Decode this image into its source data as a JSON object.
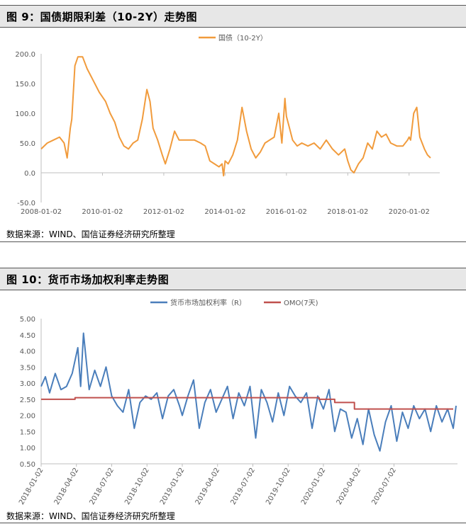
{
  "charts": [
    {
      "header": "图 9：国债期限利差（10-2Y）走势图",
      "source": "数据来源：WIND、国信证券经济研究所整理"
    },
    {
      "header": "图 10：货币市场加权利率走势图",
      "source": "数据来源：WIND、国信证券经济研究所整理"
    }
  ],
  "colors": {
    "orange": "#f19b3c",
    "blue": "#4a7ebb",
    "red": "#c0504d",
    "axis": "#bfbfbf",
    "text": "#595959"
  },
  "chart_data": [
    {
      "type": "line",
      "title": "",
      "legend": [
        "国债（10-2Y）"
      ],
      "legend_position": "top-center",
      "xlabel": "",
      "ylabel": "",
      "xlim": [
        2008.0,
        2021.0
      ],
      "ylim": [
        -50,
        200
      ],
      "y_ticks": [
        "-50.0",
        "0.0",
        "50.0",
        "100.0",
        "150.0",
        "200.0"
      ],
      "y_tick_values": [
        -50,
        0,
        50,
        100,
        150,
        200
      ],
      "x_ticks": [
        "2008-01-02",
        "2010-01-02",
        "2012-01-02",
        "2014-01-02",
        "2016-01-02",
        "2018-01-02",
        "2020-01-02"
      ],
      "x_tick_values": [
        2008,
        2010,
        2012,
        2014,
        2016,
        2018,
        2020
      ],
      "series": [
        {
          "name": "国债（10-2Y）",
          "x": [
            2008.0,
            2008.2,
            2008.4,
            2008.6,
            2008.75,
            2008.85,
            2008.95,
            2009.0,
            2009.1,
            2009.2,
            2009.35,
            2009.5,
            2009.7,
            2009.9,
            2010.1,
            2010.25,
            2010.4,
            2010.55,
            2010.7,
            2010.85,
            2011.0,
            2011.15,
            2011.3,
            2011.45,
            2011.55,
            2011.65,
            2011.8,
            2011.95,
            2012.05,
            2012.2,
            2012.35,
            2012.5,
            2012.65,
            2012.8,
            2013.0,
            2013.2,
            2013.35,
            2013.5,
            2013.65,
            2013.8,
            2013.9,
            2013.95,
            2014.0,
            2014.1,
            2014.25,
            2014.4,
            2014.55,
            2014.7,
            2014.85,
            2015.0,
            2015.15,
            2015.3,
            2015.45,
            2015.6,
            2015.75,
            2015.85,
            2015.95,
            2016.0,
            2016.1,
            2016.2,
            2016.35,
            2016.5,
            2016.7,
            2016.9,
            2017.1,
            2017.3,
            2017.5,
            2017.7,
            2017.9,
            2018.0,
            2018.1,
            2018.2,
            2018.35,
            2018.5,
            2018.65,
            2018.8,
            2018.95,
            2019.1,
            2019.25,
            2019.4,
            2019.6,
            2019.8,
            2019.95,
            2020.0,
            2020.05,
            2020.15,
            2020.25,
            2020.35,
            2020.5,
            2020.6,
            2020.7
          ],
          "values": [
            40,
            50,
            55,
            60,
            50,
            25,
            75,
            90,
            180,
            195,
            195,
            175,
            155,
            135,
            120,
            100,
            85,
            60,
            45,
            40,
            50,
            55,
            90,
            140,
            120,
            75,
            55,
            30,
            15,
            40,
            70,
            55,
            55,
            55,
            55,
            50,
            45,
            20,
            15,
            10,
            15,
            -5,
            20,
            15,
            30,
            55,
            110,
            70,
            40,
            25,
            35,
            50,
            55,
            60,
            100,
            50,
            125,
            95,
            75,
            55,
            45,
            50,
            45,
            50,
            40,
            55,
            40,
            30,
            40,
            20,
            5,
            0,
            15,
            25,
            50,
            40,
            70,
            60,
            65,
            50,
            45,
            45,
            55,
            60,
            55,
            100,
            110,
            60,
            40,
            30,
            25
          ]
        }
      ]
    },
    {
      "type": "line",
      "title": "",
      "legend": [
        "货币市场加权利率（R）",
        "OMO(7天)"
      ],
      "legend_position": "top-center",
      "xlabel": "",
      "ylabel": "",
      "xlim": [
        2018.0,
        2020.95
      ],
      "ylim": [
        0.5,
        5.0
      ],
      "y_ticks": [
        "0.50",
        "1.00",
        "1.50",
        "2.00",
        "2.50",
        "3.00",
        "3.50",
        "4.00",
        "4.50",
        "5.00"
      ],
      "y_tick_values": [
        0.5,
        1.0,
        1.5,
        2.0,
        2.5,
        3.0,
        3.5,
        4.0,
        4.5,
        5.0
      ],
      "x_ticks": [
        "2018-01-02",
        "2018-04-02",
        "2018-07-02",
        "2018-10-02",
        "2019-01-02",
        "2019-04-02",
        "2019-07-02",
        "2019-10-02",
        "2020-01-02",
        "2020-04-02",
        "2020-07-02"
      ],
      "x_tick_values": [
        2018.0,
        2018.25,
        2018.5,
        2018.75,
        2019.0,
        2019.25,
        2019.5,
        2019.75,
        2020.0,
        2020.25,
        2020.5
      ],
      "series": [
        {
          "name": "货币市场加权利率（R）",
          "x": [
            2018.0,
            2018.03,
            2018.06,
            2018.1,
            2018.14,
            2018.18,
            2018.22,
            2018.26,
            2018.28,
            2018.3,
            2018.34,
            2018.38,
            2018.42,
            2018.46,
            2018.5,
            2018.54,
            2018.58,
            2018.62,
            2018.66,
            2018.7,
            2018.74,
            2018.78,
            2018.82,
            2018.86,
            2018.9,
            2018.94,
            2018.98,
            2019.0,
            2019.04,
            2019.08,
            2019.12,
            2019.16,
            2019.2,
            2019.24,
            2019.28,
            2019.32,
            2019.36,
            2019.4,
            2019.44,
            2019.48,
            2019.52,
            2019.56,
            2019.6,
            2019.64,
            2019.68,
            2019.72,
            2019.76,
            2019.8,
            2019.84,
            2019.88,
            2019.92,
            2019.96,
            2020.0,
            2020.04,
            2020.08,
            2020.12,
            2020.16,
            2020.2,
            2020.24,
            2020.28,
            2020.32,
            2020.36,
            2020.4,
            2020.44,
            2020.48,
            2020.52,
            2020.56,
            2020.6,
            2020.64,
            2020.68,
            2020.72,
            2020.76,
            2020.8,
            2020.84,
            2020.88,
            2020.92,
            2020.94
          ],
          "values": [
            2.9,
            3.2,
            2.7,
            3.3,
            2.8,
            2.9,
            3.3,
            4.1,
            2.9,
            4.55,
            2.8,
            3.4,
            2.9,
            3.5,
            2.6,
            2.3,
            2.1,
            2.8,
            1.6,
            2.4,
            2.6,
            2.5,
            2.7,
            1.9,
            2.6,
            2.8,
            2.3,
            2.0,
            2.6,
            3.1,
            1.6,
            2.4,
            2.8,
            2.1,
            2.5,
            2.9,
            1.9,
            2.7,
            2.3,
            2.9,
            1.3,
            2.8,
            2.4,
            1.8,
            2.7,
            2.0,
            2.9,
            2.6,
            2.4,
            2.7,
            1.6,
            2.6,
            2.2,
            2.8,
            1.5,
            2.2,
            2.1,
            1.3,
            1.9,
            1.1,
            2.2,
            1.4,
            0.9,
            1.8,
            2.3,
            1.2,
            2.1,
            1.6,
            2.3,
            1.9,
            2.2,
            1.5,
            2.3,
            1.8,
            2.2,
            1.6,
            2.3
          ]
        },
        {
          "name": "OMO(7天)",
          "x": [
            2018.0,
            2018.24,
            2018.24,
            2019.97,
            2019.97,
            2020.08,
            2020.08,
            2020.22,
            2020.22,
            2020.92
          ],
          "values": [
            2.5,
            2.5,
            2.55,
            2.55,
            2.5,
            2.5,
            2.4,
            2.4,
            2.2,
            2.2
          ]
        }
      ]
    }
  ]
}
